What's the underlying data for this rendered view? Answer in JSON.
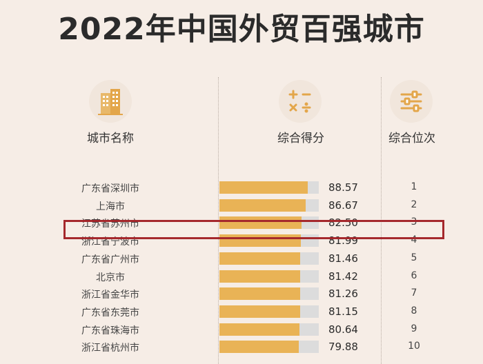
{
  "title": "2022年中国外贸百强城市",
  "colors": {
    "background": "#f6ede6",
    "bar": "#e9b356",
    "track": "#dcdcdc",
    "highlight": "#a5282c"
  },
  "icons": {
    "city": "building-icon",
    "score": "math-operators-icon",
    "rank": "sliders-icon"
  },
  "headers": {
    "city": "城市名称",
    "score": "综合得分",
    "rank": "综合位次"
  },
  "chart_data": {
    "type": "bar",
    "title": "2022年中国外贸百强城市",
    "categories": [
      "广东省深圳市",
      "上海市",
      "江苏省苏州市",
      "浙江省宁波市",
      "广东省广州市",
      "北京市",
      "浙江省金华市",
      "广东省东莞市",
      "广东省珠海市",
      "浙江省杭州市"
    ],
    "values": [
      88.57,
      86.67,
      82.5,
      81.99,
      81.46,
      81.42,
      81.26,
      81.15,
      80.64,
      79.88
    ],
    "value_labels": [
      "88.57",
      "86.67",
      "82.50",
      "81.99",
      "81.46",
      "81.42",
      "81.26",
      "81.15",
      "80.64",
      "79.88"
    ],
    "ranks": [
      "1",
      "2",
      "3",
      "4",
      "5",
      "6",
      "7",
      "8",
      "9",
      "10"
    ],
    "xlim": [
      0,
      100
    ],
    "highlighted_category": "江苏省苏州市",
    "grid": false
  }
}
